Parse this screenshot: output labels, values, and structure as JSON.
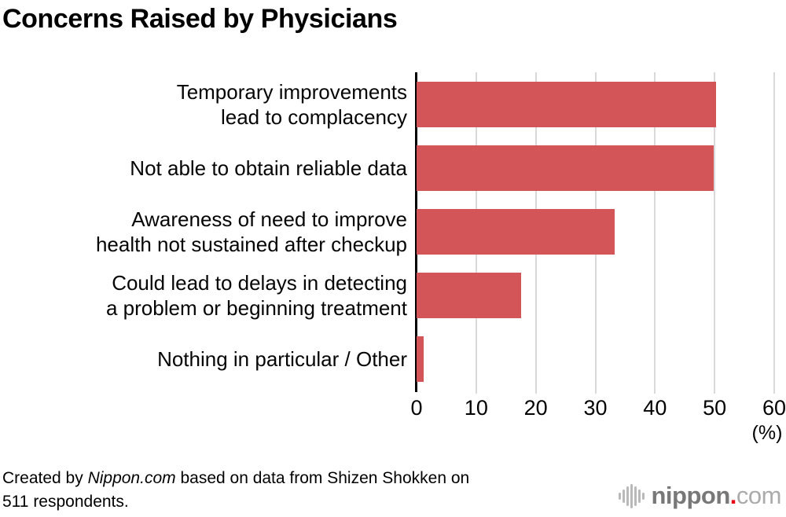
{
  "title": "Concerns Raised by Physicians",
  "chart_data": {
    "type": "bar",
    "orientation": "horizontal",
    "title": "Concerns Raised by Physicians",
    "categories": [
      "Temporary improvements lead to complacency",
      "Not able to obtain reliable data",
      "Awareness of need to improve health not sustained after checkup",
      "Could lead to delays in detecting a problem or beginning treatment",
      "Nothing in particular / Other"
    ],
    "label_lines": [
      [
        "Temporary improvements",
        "lead to complacency"
      ],
      [
        "Not able to obtain reliable data"
      ],
      [
        "Awareness of need to improve",
        "health not sustained after checkup"
      ],
      [
        "Could lead to delays in detecting",
        "a problem or beginning treatment"
      ],
      [
        "Nothing in particular / Other"
      ]
    ],
    "values": [
      50.3,
      49.8,
      33.2,
      17.5,
      1.2
    ],
    "xlabel": "",
    "ylabel": "",
    "xlim": [
      0,
      60
    ],
    "xticks": [
      0,
      10,
      20,
      30,
      40,
      50,
      60
    ],
    "x_unit_label": "(%)",
    "grid": true,
    "legend": "none",
    "bar_color": "#d45558",
    "gridline_color": "#d9d9d9",
    "axis_color": "#000000"
  },
  "footer": {
    "line1_prefix": "Created by ",
    "line1_source": "Nippon.com",
    "line1_suffix": " based on data from Shizen Shokken on",
    "line2": "511 respondents."
  },
  "logo": {
    "icon": "soundwave-icon",
    "nippon": "nippon",
    "dot": ".",
    "com": "com",
    "dot_color": "#e60012"
  }
}
